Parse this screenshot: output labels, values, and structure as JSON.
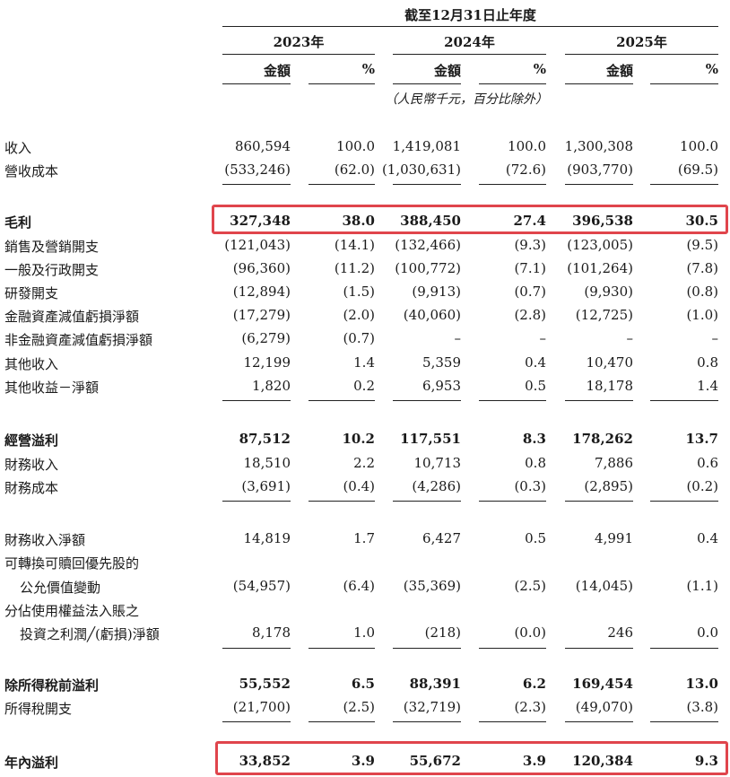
{
  "header": {
    "period": "截至12月31日止年度",
    "years": [
      "2023年",
      "2024年",
      "2025年"
    ],
    "amount_label": "金額",
    "percent_label": "%",
    "unit_note": "（人民幣千元，百分比除外）"
  },
  "rows": [
    {
      "label": "收入",
      "values": [
        "860,594",
        "100.0",
        "1,419,081",
        "100.0",
        "1,300,308",
        "100.0"
      ]
    },
    {
      "label": "營收成本",
      "values": [
        "(533,246)",
        "(62.0)",
        "(1,030,631)",
        "(72.6)",
        "(903,770)",
        "(69.5)"
      ]
    },
    {
      "label": "毛利",
      "values": [
        "327,348",
        "38.0",
        "388,450",
        "27.4",
        "396,538",
        "30.5"
      ],
      "bold": true
    },
    {
      "label": "銷售及營銷開支",
      "values": [
        "(121,043)",
        "(14.1)",
        "(132,466)",
        "(9.3)",
        "(123,005)",
        "(9.5)"
      ]
    },
    {
      "label": "一般及行政開支",
      "values": [
        "(96,360)",
        "(11.2)",
        "(100,772)",
        "(7.1)",
        "(101,264)",
        "(7.8)"
      ]
    },
    {
      "label": "研發開支",
      "values": [
        "(12,894)",
        "(1.5)",
        "(9,913)",
        "(0.7)",
        "(9,930)",
        "(0.8)"
      ]
    },
    {
      "label": "金融資產減值虧損淨額",
      "values": [
        "(17,279)",
        "(2.0)",
        "(40,060)",
        "(2.8)",
        "(12,725)",
        "(1.0)"
      ]
    },
    {
      "label": "非金融資產減值虧損淨額",
      "values": [
        "(6,279)",
        "(0.7)",
        "–",
        "–",
        "–",
        "–"
      ]
    },
    {
      "label": "其他收入",
      "values": [
        "12,199",
        "1.4",
        "5,359",
        "0.4",
        "10,470",
        "0.8"
      ]
    },
    {
      "label": "其他收益－淨額",
      "values": [
        "1,820",
        "0.2",
        "6,953",
        "0.5",
        "18,178",
        "1.4"
      ]
    },
    {
      "label": "經營溢利",
      "values": [
        "87,512",
        "10.2",
        "117,551",
        "8.3",
        "178,262",
        "13.7"
      ],
      "bold": true
    },
    {
      "label": "財務收入",
      "values": [
        "18,510",
        "2.2",
        "10,713",
        "0.8",
        "7,886",
        "0.6"
      ]
    },
    {
      "label": "財務成本",
      "values": [
        "(3,691)",
        "(0.4)",
        "(4,286)",
        "(0.3)",
        "(2,895)",
        "(0.2)"
      ]
    },
    {
      "label": "財務收入淨額",
      "values": [
        "14,819",
        "1.7",
        "6,427",
        "0.5",
        "4,991",
        "0.4"
      ]
    },
    {
      "label": "可轉換可贖回優先股的",
      "values": [
        "",
        "",
        "",
        "",
        "",
        ""
      ]
    },
    {
      "label": "公允價值變動",
      "values": [
        "(54,957)",
        "(6.4)",
        "(35,369)",
        "(2.5)",
        "(14,045)",
        "(1.1)"
      ]
    },
    {
      "label": "分佔使用權益法入賬之",
      "values": [
        "",
        "",
        "",
        "",
        "",
        ""
      ]
    },
    {
      "label": "投資之利潤╱(虧損)淨額",
      "values": [
        "8,178",
        "1.0",
        "(218)",
        "(0.0)",
        "246",
        "0.0"
      ]
    },
    {
      "label": "除所得稅前溢利",
      "values": [
        "55,552",
        "6.5",
        "88,391",
        "6.2",
        "169,454",
        "13.0"
      ],
      "bold": true
    },
    {
      "label": "所得稅開支",
      "values": [
        "(21,700)",
        "(2.5)",
        "(32,719)",
        "(2.3)",
        "(49,070)",
        "(3.8)"
      ]
    },
    {
      "label": "年內溢利",
      "values": [
        "33,852",
        "3.9",
        "55,672",
        "3.9",
        "120,384",
        "9.3"
      ],
      "bold": true
    }
  ]
}
